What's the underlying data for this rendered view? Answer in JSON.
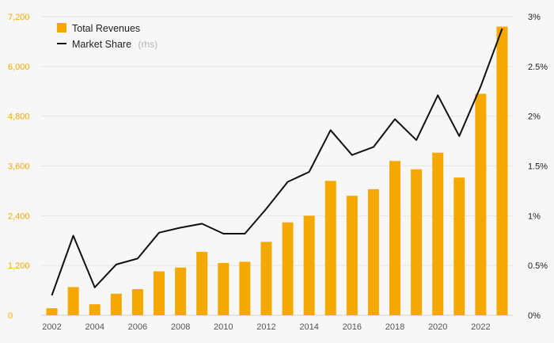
{
  "chart_data": {
    "type": "bar",
    "categories": [
      "2002",
      "2003",
      "2004",
      "2005",
      "2006",
      "2007",
      "2008",
      "2009",
      "2010",
      "2011",
      "2012",
      "2013",
      "2014",
      "2015",
      "2016",
      "2017",
      "2018",
      "2019",
      "2020",
      "2021",
      "2022",
      "2023"
    ],
    "series": [
      {
        "name": "Total Revenues",
        "axis": "left",
        "type": "bar",
        "color": "#f5a800",
        "values": [
          170,
          680,
          265,
          520,
          630,
          1060,
          1150,
          1530,
          1260,
          1290,
          1770,
          2240,
          2400,
          3240,
          2880,
          3040,
          3720,
          3520,
          3920,
          3320,
          5340,
          6960
        ]
      },
      {
        "name": "Market Share",
        "axis": "right",
        "type": "line",
        "color": "#111111",
        "values": [
          0.2,
          0.8,
          0.28,
          0.51,
          0.57,
          0.83,
          0.88,
          0.92,
          0.82,
          0.82,
          1.07,
          1.34,
          1.44,
          1.86,
          1.61,
          1.69,
          1.97,
          1.76,
          2.21,
          1.8,
          2.3,
          2.88
        ]
      }
    ],
    "ylim_left": [
      0,
      7200
    ],
    "yticks_left": [
      "0",
      "1,200",
      "2,400",
      "3,600",
      "4,800",
      "6,000",
      "7,200"
    ],
    "ylim_right": [
      0,
      3
    ],
    "yticks_right": [
      "0%",
      "0.5%",
      "1%",
      "1.5%",
      "2%",
      "2.5%",
      "3%"
    ],
    "xtick_labels": [
      "2002",
      "2004",
      "2006",
      "2008",
      "2010",
      "2012",
      "2014",
      "2016",
      "2018",
      "2020",
      "2022"
    ],
    "legend": {
      "placement": "top-left",
      "items": [
        {
          "label": "Total Revenues",
          "marker": "square",
          "color": "#f5a800"
        },
        {
          "label": "Market Share",
          "note": "(rhs)",
          "marker": "line",
          "color": "#111111"
        }
      ]
    },
    "grid": true
  }
}
